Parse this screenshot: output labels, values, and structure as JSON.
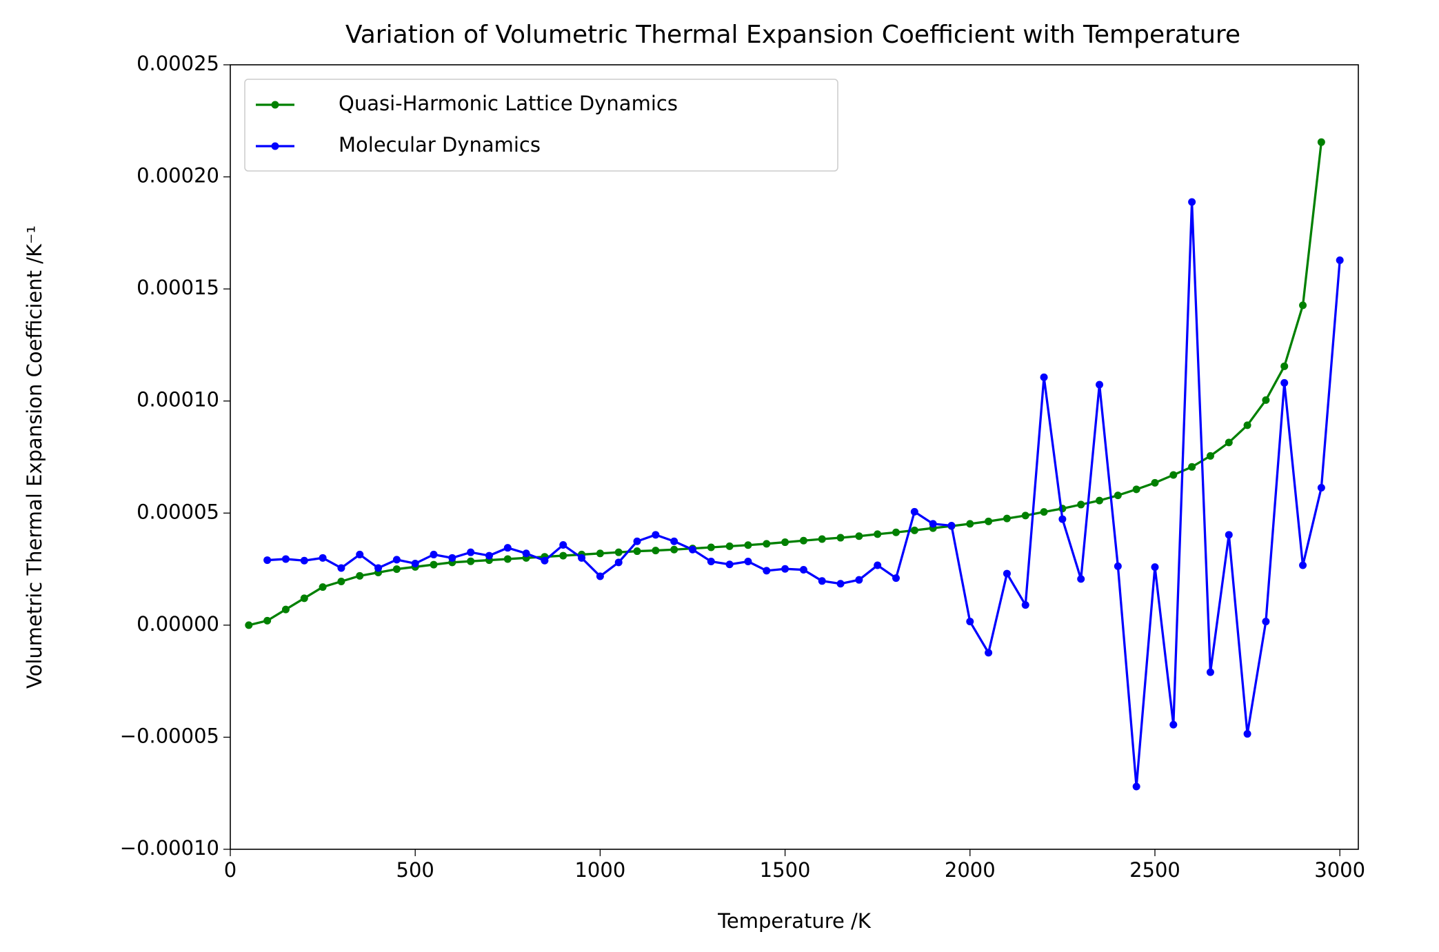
{
  "chart_data": {
    "type": "line",
    "title": "Variation of Volumetric Thermal Expansion Coefficient with Temperature",
    "xlabel": "Temperature /K",
    "ylabel": "Volumetric Thermal Expansion Coefficient /K⁻¹",
    "xlim": [
      0,
      3050
    ],
    "ylim": [
      -0.0001,
      0.00025
    ],
    "xticks": [
      0,
      500,
      1000,
      1500,
      2000,
      2500,
      3000
    ],
    "yticks": [
      {
        "value": -0.0001,
        "label": "−0.00010"
      },
      {
        "value": -5e-05,
        "label": "−0.00005"
      },
      {
        "value": 0,
        "label": "0.00000"
      },
      {
        "value": 5e-05,
        "label": "0.00005"
      },
      {
        "value": 0.0001,
        "label": "0.00010"
      },
      {
        "value": 0.00015,
        "label": "0.00015"
      },
      {
        "value": 0.0002,
        "label": "0.00020"
      },
      {
        "value": 0.00025,
        "label": "0.00025"
      }
    ],
    "grid": false,
    "legend": "upper left",
    "series": [
      {
        "name": "Quasi-Harmonic Lattice Dynamics",
        "color": "#008000",
        "x": [
          50,
          100,
          150,
          200,
          250,
          300,
          350,
          400,
          450,
          500,
          550,
          600,
          650,
          700,
          750,
          800,
          850,
          900,
          950,
          1000,
          1050,
          1100,
          1150,
          1200,
          1250,
          1300,
          1350,
          1400,
          1450,
          1500,
          1550,
          1600,
          1650,
          1700,
          1750,
          1800,
          1850,
          1900,
          1950,
          2000,
          2050,
          2100,
          2150,
          2200,
          2250,
          2300,
          2350,
          2400,
          2450,
          2500,
          2550,
          2600,
          2650,
          2700,
          2750,
          2800,
          2850,
          2900,
          2950
        ],
        "values": [
          0.0,
          2e-06,
          7e-06,
          1.2e-05,
          1.7e-05,
          1.95e-05,
          2.2e-05,
          2.35e-05,
          2.5e-05,
          2.6e-05,
          2.7e-05,
          2.8e-05,
          2.85e-05,
          2.9e-05,
          2.95e-05,
          3e-05,
          3.05e-05,
          3.1e-05,
          3.15e-05,
          3.2e-05,
          3.25e-05,
          3.3e-05,
          3.33e-05,
          3.37e-05,
          3.42e-05,
          3.47e-05,
          3.52e-05,
          3.57e-05,
          3.63e-05,
          3.7e-05,
          3.77e-05,
          3.84e-05,
          3.9e-05,
          3.97e-05,
          4.06e-05,
          4.14e-05,
          4.23e-05,
          4.33e-05,
          4.42e-05,
          4.52e-05,
          4.63e-05,
          4.76e-05,
          4.89e-05,
          5.05e-05,
          5.2e-05,
          5.38e-05,
          5.56e-05,
          5.79e-05,
          6.06e-05,
          6.35e-05,
          6.7e-05,
          7.06e-05,
          7.55e-05,
          8.15e-05,
          8.92e-05,
          0.0001004,
          0.0001155,
          0.0001427,
          0.0002155
        ]
      },
      {
        "name": "Molecular Dynamics",
        "color": "#0000ff",
        "x": [
          100,
          150,
          200,
          250,
          300,
          350,
          400,
          450,
          500,
          550,
          600,
          650,
          700,
          750,
          800,
          850,
          900,
          950,
          1000,
          1050,
          1100,
          1150,
          1200,
          1250,
          1300,
          1350,
          1400,
          1450,
          1500,
          1550,
          1600,
          1650,
          1700,
          1750,
          1800,
          1850,
          1900,
          1950,
          2000,
          2050,
          2100,
          2150,
          2200,
          2250,
          2300,
          2350,
          2400,
          2450,
          2500,
          2550,
          2600,
          2650,
          2700,
          2750,
          2800,
          2850,
          2900,
          2950,
          3000
        ],
        "values": [
          2.9e-05,
          2.95e-05,
          2.88e-05,
          3e-05,
          2.55e-05,
          3.15e-05,
          2.55e-05,
          2.92e-05,
          2.75e-05,
          3.15e-05,
          3e-05,
          3.25e-05,
          3.1e-05,
          3.45e-05,
          3.2e-05,
          2.88e-05,
          3.58e-05,
          3e-05,
          2.18e-05,
          2.8e-05,
          3.74e-05,
          4.03e-05,
          3.74e-05,
          3.37e-05,
          2.84e-05,
          2.71e-05,
          2.84e-05,
          2.43e-05,
          2.51e-05,
          2.47e-05,
          1.97e-05,
          1.85e-05,
          2.02e-05,
          2.67e-05,
          2.1e-05,
          5.06e-05,
          4.52e-05,
          4.44e-05,
          1.6e-06,
          -1.23e-05,
          2.3e-05,
          9e-06,
          0.0001106,
          4.73e-05,
          2.06e-05,
          0.0001073,
          2.63e-05,
          -7.2e-05,
          2.59e-05,
          -4.44e-05,
          0.0001888,
          -2.1e-05,
          4.03e-05,
          -4.85e-05,
          1.6e-06,
          0.0001081,
          2.67e-05,
          6.13e-05,
          0.0001628
        ]
      }
    ]
  }
}
